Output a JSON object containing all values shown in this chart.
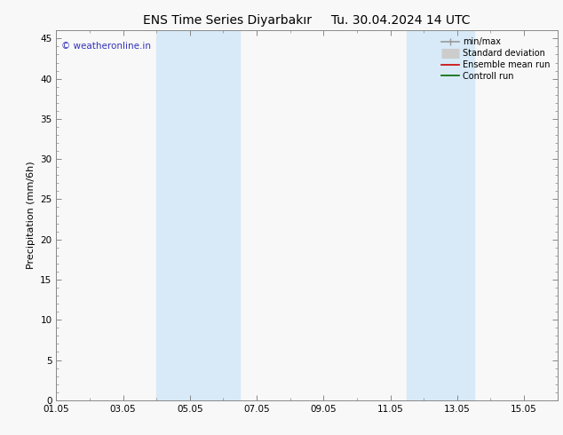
{
  "title": "ENS Time Series Diyarbakır",
  "title_right": "Tu. 30.04.2024 14 UTC",
  "ylabel": "Precipitation (mm/6h)",
  "watermark": "© weatheronline.in",
  "xlim": [
    0,
    15
  ],
  "ylim": [
    0,
    46
  ],
  "yticks": [
    0,
    5,
    10,
    15,
    20,
    25,
    30,
    35,
    40,
    45
  ],
  "xtick_labels": [
    "01.05",
    "03.05",
    "05.05",
    "07.05",
    "09.05",
    "11.05",
    "13.05",
    "15.05"
  ],
  "xtick_positions": [
    0,
    2,
    4,
    6,
    8,
    10,
    12,
    14
  ],
  "background_color": "#f8f8f8",
  "plot_bg_color": "#f0f0f0",
  "shaded_regions": [
    {
      "xmin": 3.0,
      "xmax": 5.5,
      "color": "#d8eaf8"
    },
    {
      "xmin": 10.5,
      "xmax": 12.5,
      "color": "#d8eaf8"
    }
  ],
  "legend_items": [
    {
      "label": "min/max",
      "color": "#999999",
      "lw": 1.2,
      "type": "line_with_caps"
    },
    {
      "label": "Standard deviation",
      "color": "#cccccc",
      "lw": 8,
      "type": "thick"
    },
    {
      "label": "Ensemble mean run",
      "color": "#cc0000",
      "lw": 1.2,
      "type": "line"
    },
    {
      "label": "Controll run",
      "color": "#006600",
      "lw": 1.2,
      "type": "line"
    }
  ],
  "title_fontsize": 10,
  "axis_fontsize": 8,
  "tick_fontsize": 7.5,
  "watermark_color": "#3333bb",
  "watermark_fontsize": 7.5
}
